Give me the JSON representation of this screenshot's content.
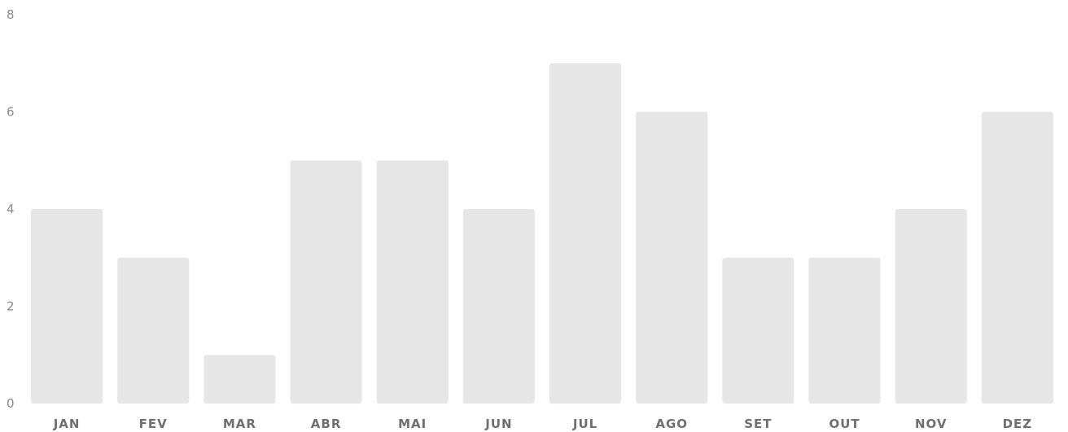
{
  "chart_data": {
    "type": "bar",
    "title": "",
    "xlabel": "",
    "ylabel": "",
    "categories": [
      "JAN",
      "FEV",
      "MAR",
      "ABR",
      "MAI",
      "JUN",
      "JUL",
      "AGO",
      "SET",
      "OUT",
      "NOV",
      "DEZ"
    ],
    "values": [
      4,
      3,
      1,
      5,
      5,
      4,
      7,
      6,
      3,
      3,
      4,
      6
    ],
    "ylim": [
      0,
      8
    ],
    "yticks": [
      "0",
      "2",
      "4",
      "6",
      "8"
    ],
    "grid": false,
    "bar_color": "#e6e6e6"
  }
}
